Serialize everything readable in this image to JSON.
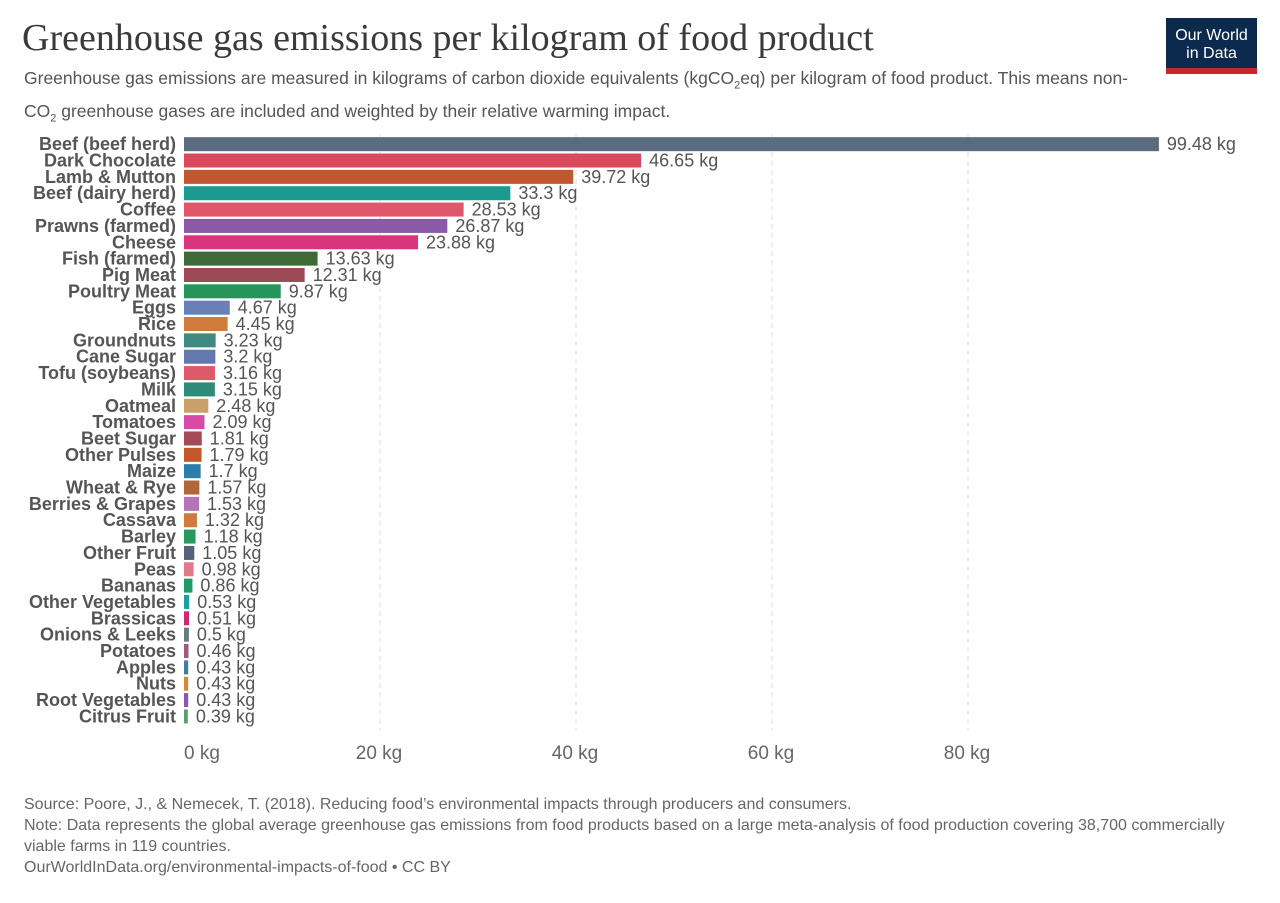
{
  "header": {
    "title": "Greenhouse gas emissions per kilogram of food product",
    "subtitle_part1": "Greenhouse gas emissions are measured in kilograms of carbon dioxide equivalents (kgCO",
    "subtitle_sub": "2",
    "subtitle_part2": "eq) per kilogram of food product. This means non-CO",
    "subtitle_sub2": "2",
    "subtitle_part3": " greenhouse gases are included and weighted by their relative warming impact."
  },
  "logo": {
    "line1": "Our World",
    "line2": "in Data"
  },
  "footer": {
    "source": "Source: Poore, J., & Nemecek, T. (2018). Reducing food’s environmental impacts through producers and consumers.",
    "note": "Note: Data represents the global average greenhouse gas emissions from food products based on a large meta-analysis of food production covering 38,700 commercially viable farms in 119 countries.",
    "url": "OurWorldInData.org/environmental-impacts-of-food • CC BY"
  },
  "chart_data": {
    "type": "bar",
    "orientation": "horizontal",
    "xlim": [
      0,
      100
    ],
    "grid": true,
    "value_suffix": " kg",
    "x_ticks": [
      {
        "value": 0,
        "label": "0 kg"
      },
      {
        "value": 20,
        "label": "20 kg"
      },
      {
        "value": 40,
        "label": "40 kg"
      },
      {
        "value": 60,
        "label": "60 kg"
      },
      {
        "value": 80,
        "label": "80 kg"
      }
    ],
    "bars": [
      {
        "category": "Beef (beef herd)",
        "value": 99.48,
        "label": "99.48 kg",
        "color": "#5b6b80"
      },
      {
        "category": "Dark Chocolate",
        "value": 46.65,
        "label": "46.65 kg",
        "color": "#d94b5c"
      },
      {
        "category": "Lamb & Mutton",
        "value": 39.72,
        "label": "39.72 kg",
        "color": "#c1562f"
      },
      {
        "category": "Beef (dairy herd)",
        "value": 33.3,
        "label": "33.3 kg",
        "color": "#1b9a8f"
      },
      {
        "category": "Coffee",
        "value": 28.53,
        "label": "28.53 kg",
        "color": "#e0566a"
      },
      {
        "category": "Prawns (farmed)",
        "value": 26.87,
        "label": "26.87 kg",
        "color": "#8a5aa6"
      },
      {
        "category": "Cheese",
        "value": 23.88,
        "label": "23.88 kg",
        "color": "#d8357e"
      },
      {
        "category": "Fish (farmed)",
        "value": 13.63,
        "label": "13.63 kg",
        "color": "#3d6b35"
      },
      {
        "category": "Pig Meat",
        "value": 12.31,
        "label": "12.31 kg",
        "color": "#9c4a55"
      },
      {
        "category": "Poultry Meat",
        "value": 9.87,
        "label": "9.87 kg",
        "color": "#27955a"
      },
      {
        "category": "Eggs",
        "value": 4.67,
        "label": "4.67 kg",
        "color": "#6a7fb5"
      },
      {
        "category": "Rice",
        "value": 4.45,
        "label": "4.45 kg",
        "color": "#d07a3c"
      },
      {
        "category": "Groundnuts",
        "value": 3.23,
        "label": "3.23 kg",
        "color": "#3e8a80"
      },
      {
        "category": "Cane Sugar",
        "value": 3.2,
        "label": "3.2 kg",
        "color": "#6378ad"
      },
      {
        "category": "Tofu (soybeans)",
        "value": 3.16,
        "label": "3.16 kg",
        "color": "#de5a6b"
      },
      {
        "category": "Milk",
        "value": 3.15,
        "label": "3.15 kg",
        "color": "#2e8b7a"
      },
      {
        "category": "Oatmeal",
        "value": 2.48,
        "label": "2.48 kg",
        "color": "#c9a06a"
      },
      {
        "category": "Tomatoes",
        "value": 2.09,
        "label": "2.09 kg",
        "color": "#d94aa6"
      },
      {
        "category": "Beet Sugar",
        "value": 1.81,
        "label": "1.81 kg",
        "color": "#a24a55"
      },
      {
        "category": "Other Pulses",
        "value": 1.79,
        "label": "1.79 kg",
        "color": "#c05a2a"
      },
      {
        "category": "Maize",
        "value": 1.7,
        "label": "1.7 kg",
        "color": "#2a7faa"
      },
      {
        "category": "Wheat & Rye",
        "value": 1.57,
        "label": "1.57 kg",
        "color": "#b0653a"
      },
      {
        "category": "Berries & Grapes",
        "value": 1.53,
        "label": "1.53 kg",
        "color": "#b275b8"
      },
      {
        "category": "Cassava",
        "value": 1.32,
        "label": "1.32 kg",
        "color": "#d27a3e"
      },
      {
        "category": "Barley",
        "value": 1.18,
        "label": "1.18 kg",
        "color": "#279a5e"
      },
      {
        "category": "Other Fruit",
        "value": 1.05,
        "label": "1.05 kg",
        "color": "#56627a"
      },
      {
        "category": "Peas",
        "value": 0.98,
        "label": "0.98 kg",
        "color": "#e07a8a"
      },
      {
        "category": "Bananas",
        "value": 0.86,
        "label": "0.86 kg",
        "color": "#1f9a6a"
      },
      {
        "category": "Other Vegetables",
        "value": 0.53,
        "label": "0.53 kg",
        "color": "#1aa0a0"
      },
      {
        "category": "Brassicas",
        "value": 0.51,
        "label": "0.51 kg",
        "color": "#d02a6a"
      },
      {
        "category": "Onions & Leeks",
        "value": 0.5,
        "label": "0.5 kg",
        "color": "#6a7a7a"
      },
      {
        "category": "Potatoes",
        "value": 0.46,
        "label": "0.46 kg",
        "color": "#a05a7a"
      },
      {
        "category": "Apples",
        "value": 0.43,
        "label": "0.43 kg",
        "color": "#4a7aa0"
      },
      {
        "category": "Nuts",
        "value": 0.43,
        "label": "0.43 kg",
        "color": "#d08a3a"
      },
      {
        "category": "Root Vegetables",
        "value": 0.43,
        "label": "0.43 kg",
        "color": "#8a5ab0"
      },
      {
        "category": "Citrus Fruit",
        "value": 0.39,
        "label": "0.39 kg",
        "color": "#5aa06a"
      }
    ]
  }
}
